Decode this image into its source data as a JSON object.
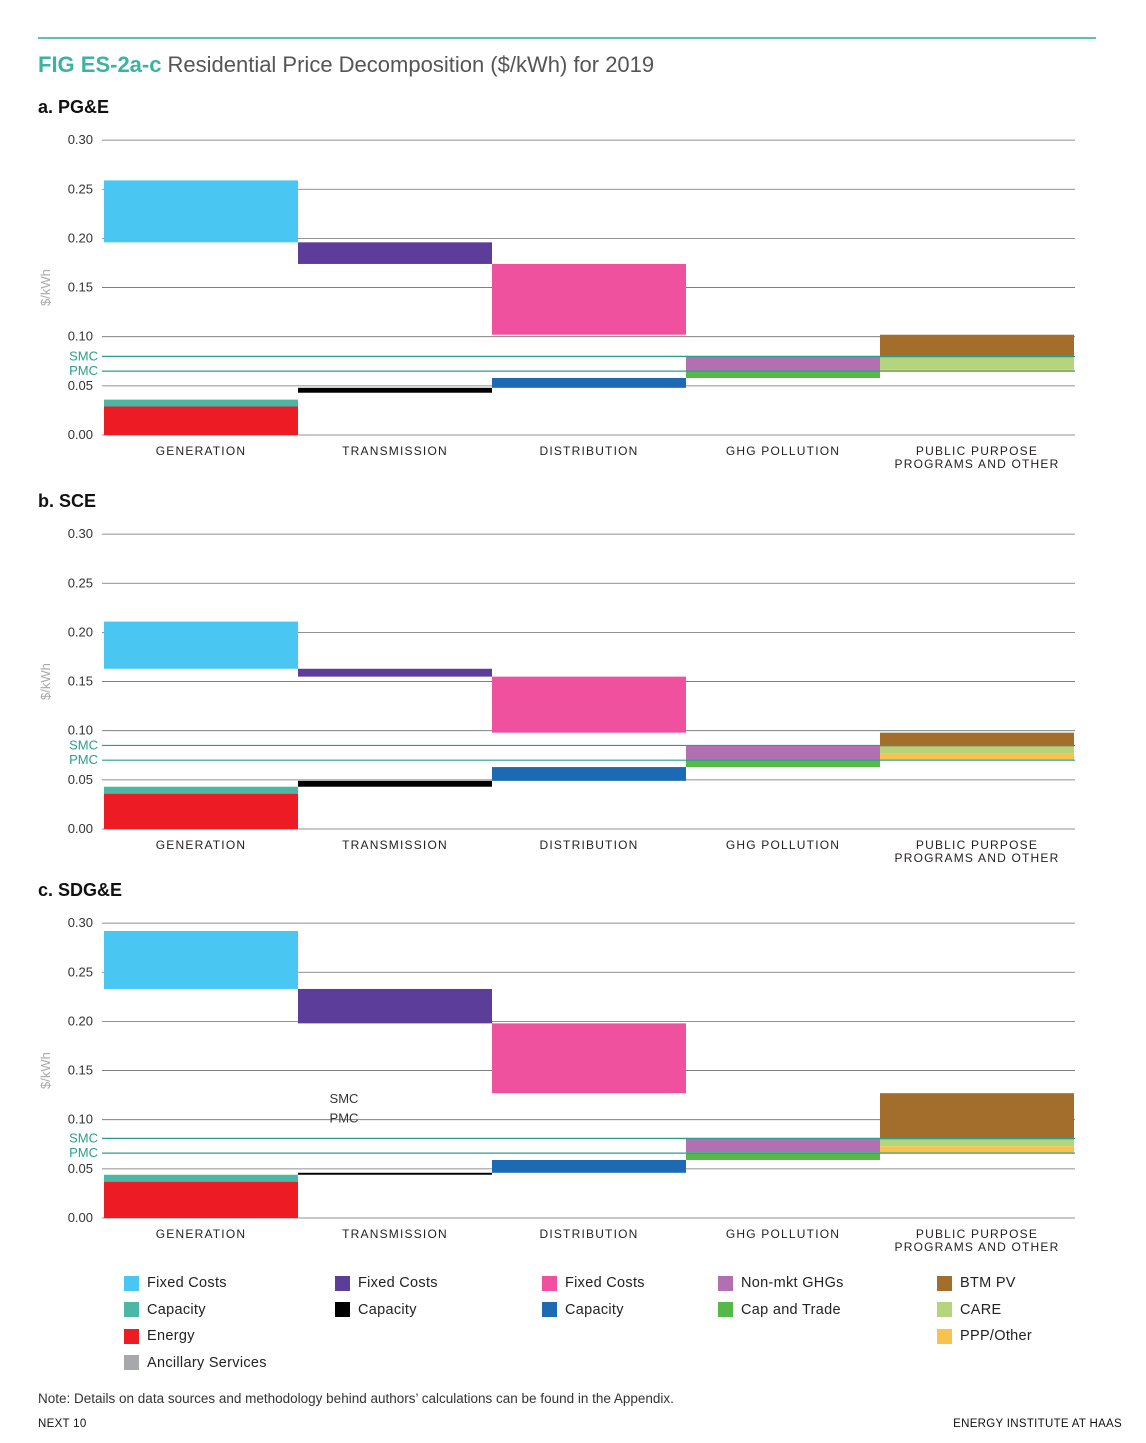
{
  "header": {
    "figure_code": "FIG ES-2a-c",
    "figure_title": "Residential Price Decomposition ($/kWh) for 2019"
  },
  "legend": {
    "columns": [
      [
        {
          "label": "Fixed Costs",
          "color": "#4ac6f2"
        },
        {
          "label": "Capacity",
          "color": "#4bb8a4"
        },
        {
          "label": "Energy",
          "color": "#ed1c24"
        },
        {
          "label": "Ancillary Services",
          "color": "#a6a8ab"
        }
      ],
      [
        {
          "label": "Fixed Costs",
          "color": "#5c3d99"
        },
        {
          "label": "Capacity",
          "color": "#000000"
        }
      ],
      [
        {
          "label": "Fixed Costs",
          "color": "#ef519f"
        },
        {
          "label": "Capacity",
          "color": "#1b6ab3"
        }
      ],
      [
        {
          "label": "Non-mkt GHGs",
          "color": "#b270b2"
        },
        {
          "label": "Cap and Trade",
          "color": "#55b849"
        }
      ],
      [
        {
          "label": "BTM PV",
          "color": "#a36e2c"
        },
        {
          "label": "CARE",
          "color": "#b5d57c"
        },
        {
          "label": "PPP/Other",
          "color": "#f9c24f"
        }
      ]
    ]
  },
  "footer": {
    "note": "Note: Details on data sources and methodology behind authors’ calculations can be found in the Appendix.",
    "left": "NEXT 10",
    "right": "ENERGY INSTITUTE AT HAAS"
  },
  "chart_data": [
    {
      "panel_title": "a. PG&E",
      "type": "bar",
      "ylabel": "$/kWh",
      "ylim": [
        0,
        0.3
      ],
      "yticks": [
        "0.00",
        "0.05",
        "0.10",
        "0.15",
        "0.20",
        "0.25",
        "0.30"
      ],
      "categories": [
        "GENERATION",
        "TRANSMISSION",
        "DISTRIBUTION",
        "GHG POLLUTION",
        "PUBLIC PURPOSE PROGRAMS AND OTHER"
      ],
      "reference_lines": [
        {
          "label": "SMC",
          "value": 0.08
        },
        {
          "label": "PMC",
          "value": 0.065
        }
      ],
      "segments": [
        {
          "category": "GENERATION",
          "component": "Energy",
          "color": "#ed1c24",
          "y0": 0.0,
          "y1": 0.029
        },
        {
          "category": "GENERATION",
          "component": "Capacity",
          "color": "#4bb8a4",
          "y0": 0.029,
          "y1": 0.036
        },
        {
          "category": "GENERATION",
          "component": "Fixed Costs",
          "color": "#4ac6f2",
          "y0": 0.196,
          "y1": 0.259
        },
        {
          "category": "TRANSMISSION",
          "component": "Capacity",
          "color": "#000000",
          "y0": 0.043,
          "y1": 0.048
        },
        {
          "category": "TRANSMISSION",
          "component": "Fixed Costs",
          "color": "#5c3d99",
          "y0": 0.174,
          "y1": 0.196
        },
        {
          "category": "DISTRIBUTION",
          "component": "Capacity",
          "color": "#1b6ab3",
          "y0": 0.048,
          "y1": 0.058
        },
        {
          "category": "DISTRIBUTION",
          "component": "Fixed Costs",
          "color": "#ef519f",
          "y0": 0.102,
          "y1": 0.174
        },
        {
          "category": "GHG POLLUTION",
          "component": "Cap and Trade",
          "color": "#55b849",
          "y0": 0.058,
          "y1": 0.065
        },
        {
          "category": "GHG POLLUTION",
          "component": "Non-mkt GHGs",
          "color": "#b270b2",
          "y0": 0.065,
          "y1": 0.08
        },
        {
          "category": "PUBLIC PURPOSE PROGRAMS AND OTHER",
          "component": "PPP/Other",
          "color": "#f9c24f",
          "y0": 0.065,
          "y1": 0.067
        },
        {
          "category": "PUBLIC PURPOSE PROGRAMS AND OTHER",
          "component": "CARE",
          "color": "#b5d57c",
          "y0": 0.067,
          "y1": 0.079
        },
        {
          "category": "PUBLIC PURPOSE PROGRAMS AND OTHER",
          "component": "BTM PV",
          "color": "#a36e2c",
          "y0": 0.079,
          "y1": 0.102
        }
      ],
      "annotations": []
    },
    {
      "panel_title": "b. SCE",
      "type": "bar",
      "ylabel": "$/kWh",
      "ylim": [
        0,
        0.3
      ],
      "yticks": [
        "0.00",
        "0.05",
        "0.10",
        "0.15",
        "0.20",
        "0.25",
        "0.30"
      ],
      "categories": [
        "GENERATION",
        "TRANSMISSION",
        "DISTRIBUTION",
        "GHG POLLUTION",
        "PUBLIC PURPOSE PROGRAMS AND OTHER"
      ],
      "reference_lines": [
        {
          "label": "SMC",
          "value": 0.085
        },
        {
          "label": "PMC",
          "value": 0.07
        }
      ],
      "segments": [
        {
          "category": "GENERATION",
          "component": "Energy",
          "color": "#ed1c24",
          "y0": 0.0,
          "y1": 0.036
        },
        {
          "category": "GENERATION",
          "component": "Capacity",
          "color": "#4bb8a4",
          "y0": 0.036,
          "y1": 0.043
        },
        {
          "category": "GENERATION",
          "component": "Fixed Costs",
          "color": "#4ac6f2",
          "y0": 0.163,
          "y1": 0.211
        },
        {
          "category": "TRANSMISSION",
          "component": "Capacity",
          "color": "#000000",
          "y0": 0.043,
          "y1": 0.049
        },
        {
          "category": "TRANSMISSION",
          "component": "Fixed Costs",
          "color": "#5c3d99",
          "y0": 0.155,
          "y1": 0.163
        },
        {
          "category": "DISTRIBUTION",
          "component": "Capacity",
          "color": "#1b6ab3",
          "y0": 0.049,
          "y1": 0.063
        },
        {
          "category": "DISTRIBUTION",
          "component": "Fixed Costs",
          "color": "#ef519f",
          "y0": 0.098,
          "y1": 0.155
        },
        {
          "category": "GHG POLLUTION",
          "component": "Cap and Trade",
          "color": "#55b849",
          "y0": 0.063,
          "y1": 0.07
        },
        {
          "category": "GHG POLLUTION",
          "component": "Non-mkt GHGs",
          "color": "#b270b2",
          "y0": 0.07,
          "y1": 0.085
        },
        {
          "category": "PUBLIC PURPOSE PROGRAMS AND OTHER",
          "component": "PPP/Other",
          "color": "#f9c24f",
          "y0": 0.07,
          "y1": 0.077
        },
        {
          "category": "PUBLIC PURPOSE PROGRAMS AND OTHER",
          "component": "CARE",
          "color": "#b5d57c",
          "y0": 0.077,
          "y1": 0.084
        },
        {
          "category": "PUBLIC PURPOSE PROGRAMS AND OTHER",
          "component": "BTM PV",
          "color": "#a36e2c",
          "y0": 0.084,
          "y1": 0.098
        }
      ],
      "annotations": []
    },
    {
      "panel_title": "c. SDG&E",
      "type": "bar",
      "ylabel": "$/kWh",
      "ylim": [
        0,
        0.3
      ],
      "yticks": [
        "0.00",
        "0.05",
        "0.10",
        "0.15",
        "0.20",
        "0.25",
        "0.30"
      ],
      "categories": [
        "GENERATION",
        "TRANSMISSION",
        "DISTRIBUTION",
        "GHG POLLUTION",
        "PUBLIC PURPOSE PROGRAMS AND OTHER"
      ],
      "reference_lines": [
        {
          "label": "SMC",
          "value": 0.081
        },
        {
          "label": "PMC",
          "value": 0.066
        }
      ],
      "segments": [
        {
          "category": "GENERATION",
          "component": "Energy",
          "color": "#ed1c24",
          "y0": 0.0,
          "y1": 0.037
        },
        {
          "category": "GENERATION",
          "component": "Capacity",
          "color": "#4bb8a4",
          "y0": 0.037,
          "y1": 0.044
        },
        {
          "category": "GENERATION",
          "component": "Fixed Costs",
          "color": "#4ac6f2",
          "y0": 0.233,
          "y1": 0.292
        },
        {
          "category": "TRANSMISSION",
          "component": "Capacity",
          "color": "#000000",
          "y0": 0.044,
          "y1": 0.046
        },
        {
          "category": "TRANSMISSION",
          "component": "Fixed Costs",
          "color": "#5c3d99",
          "y0": 0.198,
          "y1": 0.233
        },
        {
          "category": "DISTRIBUTION",
          "component": "Capacity",
          "color": "#1b6ab3",
          "y0": 0.046,
          "y1": 0.059
        },
        {
          "category": "DISTRIBUTION",
          "component": "Fixed Costs",
          "color": "#ef519f",
          "y0": 0.127,
          "y1": 0.198
        },
        {
          "category": "GHG POLLUTION",
          "component": "Cap and Trade",
          "color": "#55b849",
          "y0": 0.059,
          "y1": 0.067
        },
        {
          "category": "GHG POLLUTION",
          "component": "Non-mkt GHGs",
          "color": "#b270b2",
          "y0": 0.067,
          "y1": 0.081
        },
        {
          "category": "PUBLIC PURPOSE PROGRAMS AND OTHER",
          "component": "PPP/Other",
          "color": "#f9c24f",
          "y0": 0.066,
          "y1": 0.073
        },
        {
          "category": "PUBLIC PURPOSE PROGRAMS AND OTHER",
          "component": "CARE",
          "color": "#b5d57c",
          "y0": 0.073,
          "y1": 0.08
        },
        {
          "category": "PUBLIC PURPOSE PROGRAMS AND OTHER",
          "component": "BTM PV",
          "color": "#a36e2c",
          "y0": 0.08,
          "y1": 0.127
        }
      ],
      "annotations": [
        {
          "text": "SMC"
        },
        {
          "text": "PMC"
        }
      ]
    }
  ]
}
